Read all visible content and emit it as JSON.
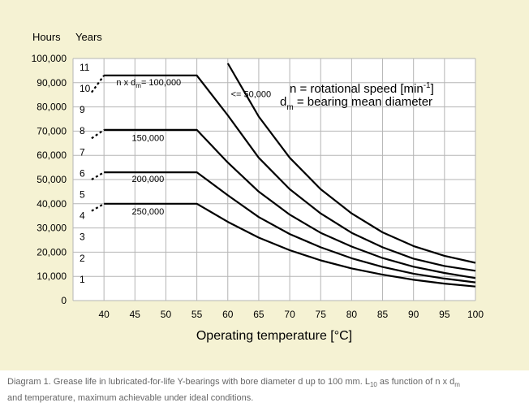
{
  "chart_data": {
    "type": "line",
    "title": "",
    "xlabel": "Operating temperature [°C]",
    "ylabel_left": "Hours",
    "ylabel_right": "Years",
    "xlim": [
      35,
      100
    ],
    "ylim": [
      0,
      100000
    ],
    "x_ticks": [
      40,
      45,
      50,
      55,
      60,
      65,
      70,
      75,
      80,
      85,
      90,
      95,
      100
    ],
    "y_ticks": [
      {
        "value": 0,
        "label": "0"
      },
      {
        "value": 10000,
        "label": "10,000"
      },
      {
        "value": 20000,
        "label": "20,000"
      },
      {
        "value": 30000,
        "label": "30,000"
      },
      {
        "value": 40000,
        "label": "40,000"
      },
      {
        "value": 50000,
        "label": "50,000"
      },
      {
        "value": 60000,
        "label": "60,000"
      },
      {
        "value": 70000,
        "label": "70,000"
      },
      {
        "value": 80000,
        "label": "80,000"
      },
      {
        "value": 90000,
        "label": "90,000"
      },
      {
        "value": 100000,
        "label": "100,000"
      }
    ],
    "years_ticks": [
      {
        "value": 8760,
        "label": "1"
      },
      {
        "value": 17520,
        "label": "2"
      },
      {
        "value": 26280,
        "label": "3"
      },
      {
        "value": 35040,
        "label": "4"
      },
      {
        "value": 43800,
        "label": "5"
      },
      {
        "value": 52560,
        "label": "6"
      },
      {
        "value": 61320,
        "label": "7"
      },
      {
        "value": 70080,
        "label": "8"
      },
      {
        "value": 78840,
        "label": "9"
      },
      {
        "value": 87600,
        "label": "10"
      },
      {
        "value": 96360,
        "label": "11"
      }
    ],
    "grid": true,
    "series": [
      {
        "name": "<= 50,000",
        "x": [
          60,
          65,
          70,
          75,
          80,
          85,
          90,
          95,
          100
        ],
        "y": [
          98000,
          76000,
          59000,
          46000,
          36000,
          28200,
          22500,
          18500,
          15600
        ]
      },
      {
        "name": "100,000",
        "x": [
          38,
          40,
          55,
          60,
          65,
          70,
          75,
          80,
          85,
          90,
          95,
          100
        ],
        "y": [
          86000,
          93000,
          93000,
          76500,
          59000,
          46000,
          36000,
          28000,
          22000,
          17300,
          14300,
          12300
        ],
        "dashed_until_x": 40
      },
      {
        "name": "150,000",
        "x": [
          38,
          40,
          55,
          60,
          65,
          70,
          75,
          80,
          85,
          90,
          95,
          100
        ],
        "y": [
          67000,
          70500,
          70500,
          57000,
          45000,
          35500,
          28000,
          22300,
          17600,
          14000,
          11400,
          9300
        ],
        "dashed_until_x": 40
      },
      {
        "name": "200,000",
        "x": [
          38,
          40,
          55,
          60,
          65,
          70,
          75,
          80,
          85,
          90,
          95,
          100
        ],
        "y": [
          50000,
          53000,
          53000,
          43500,
          34500,
          27500,
          22000,
          17500,
          13900,
          11100,
          9100,
          7500
        ],
        "dashed_until_x": 40
      },
      {
        "name": "250,000",
        "x": [
          38,
          40,
          55,
          60,
          65,
          70,
          75,
          80,
          85,
          90,
          95,
          100
        ],
        "y": [
          37000,
          40000,
          40000,
          32500,
          26000,
          20800,
          16600,
          13300,
          10700,
          8600,
          7000,
          5800
        ],
        "dashed_until_x": 40
      }
    ],
    "curve_labels": [
      {
        "text": "<= 50,000",
        "x": 60.5,
        "y": 84000
      },
      {
        "text": "n x d",
        "sub": "m",
        "rest": "= 100,000",
        "x": 42,
        "y": 89000
      },
      {
        "text": "150,000",
        "x": 44.5,
        "y": 66000
      },
      {
        "text": "200,000",
        "x": 44.5,
        "y": 49000
      },
      {
        "text": "250,000",
        "x": 44.5,
        "y": 35500
      }
    ],
    "legend_text": {
      "line1_main": "n = rotational speed [min",
      "line1_sup": "-1",
      "line1_end": "]",
      "line2_main": "d",
      "line2_sub": "m",
      "line2_end": " = bearing mean diameter"
    }
  },
  "caption": {
    "part1": "Diagram 1. Grease life in lubricated-for-life Y-bearings with bore diameter d up to 100 mm. L",
    "sub1": "10",
    "part2": " as function of n x d",
    "sub2": "m",
    "part3": "and temperature, maximum achievable under ideal conditions."
  },
  "colors": {
    "panel_bg": "#f5f2d3",
    "plot_bg": "#ffffff",
    "grid": "#b5b5b5",
    "curve": "#000000",
    "caption": "#666666"
  }
}
